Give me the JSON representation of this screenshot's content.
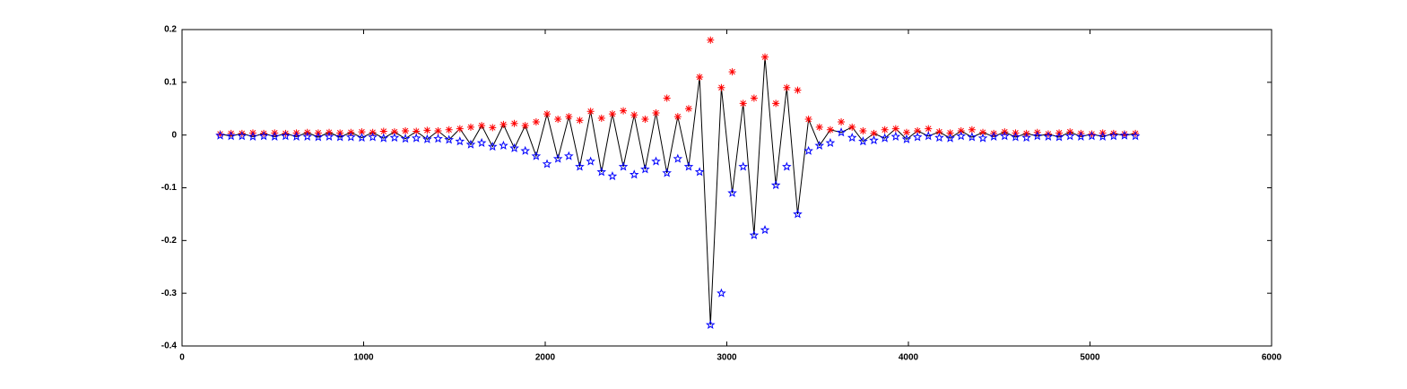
{
  "chart_data": {
    "type": "line",
    "xlim": [
      0,
      6000
    ],
    "xticks": [
      0,
      1000,
      2000,
      3000,
      4000,
      5000,
      6000
    ],
    "ylim": [
      -0.4,
      0.2
    ],
    "yticks": [
      0.2,
      0.1,
      0,
      -0.1,
      -0.2,
      -0.3,
      -0.4
    ],
    "box": true,
    "grid": false,
    "x": [
      210,
      270,
      330,
      390,
      450,
      510,
      570,
      630,
      690,
      750,
      810,
      870,
      930,
      990,
      1050,
      1110,
      1170,
      1230,
      1290,
      1350,
      1410,
      1470,
      1530,
      1590,
      1650,
      1710,
      1770,
      1830,
      1890,
      1950,
      2010,
      2070,
      2130,
      2190,
      2250,
      2310,
      2370,
      2430,
      2490,
      2550,
      2610,
      2670,
      2730,
      2790,
      2850,
      2910,
      2970,
      3030,
      3090,
      3150,
      3210,
      3270,
      3330,
      3390,
      3450,
      3510,
      3570,
      3630,
      3690,
      3750,
      3810,
      3870,
      3930,
      3990,
      4050,
      4110,
      4170,
      4230,
      4290,
      4350,
      4410,
      4470,
      4530,
      4590,
      4650,
      4710,
      4770,
      4830,
      4890,
      4950,
      5010,
      5070,
      5130,
      5190,
      5250
    ],
    "series": [
      {
        "color": "#000000",
        "marker": "none",
        "line": true,
        "values": [
          0.002,
          -0.002,
          0.003,
          -0.003,
          0.003,
          -0.003,
          0.003,
          -0.003,
          0.005,
          -0.004,
          0.005,
          -0.004,
          0.005,
          -0.005,
          0.005,
          -0.006,
          0.006,
          -0.007,
          0.007,
          -0.008,
          0.008,
          -0.009,
          0.012,
          -0.018,
          0.018,
          -0.022,
          0.02,
          -0.025,
          0.018,
          -0.04,
          0.04,
          -0.045,
          0.035,
          -0.06,
          0.045,
          -0.07,
          0.04,
          -0.06,
          0.038,
          -0.065,
          0.042,
          -0.072,
          0.035,
          -0.06,
          0.11,
          -0.36,
          0.09,
          -0.11,
          0.06,
          -0.19,
          0.148,
          -0.095,
          0.09,
          -0.15,
          0.03,
          -0.02,
          0.01,
          0.005,
          0.015,
          -0.012,
          0.003,
          -0.006,
          0.012,
          -0.008,
          0.008,
          -0.002,
          0.006,
          -0.006,
          0.008,
          -0.004,
          0.005,
          -0.003,
          0.006,
          -0.004,
          0.003,
          -0.002,
          0.002,
          -0.004,
          0.006,
          -0.003,
          0.002,
          -0.003,
          0.003,
          -0.001,
          0.003
        ]
      },
      {
        "color": "#ff0000",
        "marker": "asterisk",
        "line": false,
        "values": [
          0.002,
          0.003,
          0.003,
          0.004,
          0.003,
          0.004,
          0.003,
          0.004,
          0.005,
          0.004,
          0.005,
          0.004,
          0.005,
          0.006,
          0.005,
          0.007,
          0.006,
          0.008,
          0.007,
          0.009,
          0.008,
          0.01,
          0.012,
          0.015,
          0.018,
          0.014,
          0.02,
          0.022,
          0.018,
          0.025,
          0.04,
          0.03,
          0.035,
          0.028,
          0.045,
          0.032,
          0.04,
          0.046,
          0.038,
          0.03,
          0.042,
          0.07,
          0.035,
          0.05,
          0.11,
          0.18,
          0.09,
          0.12,
          0.06,
          0.07,
          0.148,
          0.06,
          0.09,
          0.085,
          0.03,
          0.015,
          0.01,
          0.025,
          0.015,
          0.008,
          0.003,
          0.01,
          0.012,
          0.005,
          0.008,
          0.012,
          0.006,
          0.004,
          0.008,
          0.01,
          0.005,
          0.003,
          0.006,
          0.004,
          0.003,
          0.005,
          0.002,
          0.004,
          0.006,
          0.003,
          0.002,
          0.004,
          0.003,
          0.002,
          0.003
        ]
      },
      {
        "color": "#0000ff",
        "marker": "pentagram",
        "line": false,
        "values": [
          -0.001,
          -0.002,
          -0.002,
          -0.003,
          -0.002,
          -0.003,
          -0.002,
          -0.003,
          -0.003,
          -0.004,
          -0.003,
          -0.004,
          -0.004,
          -0.005,
          -0.004,
          -0.006,
          -0.005,
          -0.007,
          -0.006,
          -0.008,
          -0.007,
          -0.009,
          -0.012,
          -0.018,
          -0.015,
          -0.022,
          -0.02,
          -0.025,
          -0.03,
          -0.04,
          -0.055,
          -0.045,
          -0.04,
          -0.06,
          -0.05,
          -0.07,
          -0.078,
          -0.06,
          -0.075,
          -0.065,
          -0.05,
          -0.072,
          -0.045,
          -0.06,
          -0.07,
          -0.36,
          -0.3,
          -0.11,
          -0.06,
          -0.19,
          -0.18,
          -0.095,
          -0.06,
          -0.15,
          -0.03,
          -0.02,
          -0.015,
          0.005,
          -0.005,
          -0.012,
          -0.01,
          -0.006,
          -0.003,
          -0.008,
          -0.004,
          -0.002,
          -0.005,
          -0.006,
          -0.002,
          -0.004,
          -0.006,
          -0.003,
          -0.002,
          -0.004,
          -0.005,
          -0.002,
          -0.003,
          -0.004,
          -0.002,
          -0.003,
          -0.002,
          -0.003,
          -0.002,
          -0.001,
          -0.002
        ]
      }
    ]
  }
}
